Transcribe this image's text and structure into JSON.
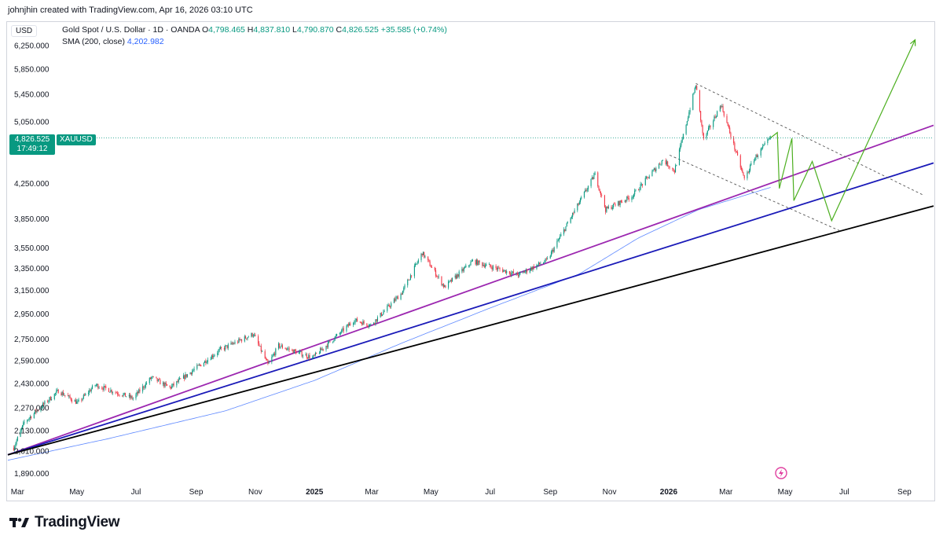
{
  "header": {
    "credit": "johnjhin created with TradingView.com, Apr 16, 2026 03:10 UTC"
  },
  "legend": {
    "symbol": "Gold Spot / U.S. Dollar · 1D · OANDA",
    "o_key": "O",
    "o_val": "4,798.465",
    "h_key": "H",
    "h_val": "4,837.810",
    "l_key": "L",
    "l_val": "4,790.870",
    "c_key": "C",
    "c_val": "4,826.525",
    "change": "+35.585 (+0.74%)",
    "sma_label": "SMA (200, close)",
    "sma_val": "4,202.982"
  },
  "price_axis": {
    "currency": "USD",
    "ticks": [
      "6,250.000",
      "5,850.000",
      "5,450.000",
      "5,050.000",
      "4,250.000",
      "3,850.000",
      "3,550.000",
      "3,350.000",
      "3,150.000",
      "2,950.000",
      "2,750.000",
      "2,590.000",
      "2,430.000",
      "2,270.000",
      "2,130.000",
      "2,010.000",
      "1,890.000"
    ],
    "last_price": "4,826.525",
    "countdown": "17:49:12",
    "symbol_tag": "XAUUSD"
  },
  "time_axis": {
    "labels": [
      "Mar",
      "May",
      "Jul",
      "Sep",
      "Nov",
      "2025",
      "Mar",
      "May",
      "Jul",
      "Sep",
      "Nov",
      "2026",
      "Mar",
      "May",
      "Jul",
      "Sep"
    ]
  },
  "footer": {
    "brand": "TradingView"
  },
  "colors": {
    "up": "#089981",
    "down": "#f23645",
    "sma": "#2962ff",
    "purple_line": "#9c27b0",
    "blue_line": "#1a1ab8",
    "black_line": "#000000",
    "projection": "#4caf1f",
    "accent": "#089981"
  },
  "chart_data": {
    "type": "candlestick",
    "symbol": "XAUUSD",
    "timeframe": "1D",
    "scale": "log",
    "ylim": [
      1850,
      6500
    ],
    "xlim": [
      "2024-02-20",
      "2026-10-01"
    ],
    "last_close": 4826.525,
    "price_path": [
      [
        "2024-02-26",
        2030
      ],
      [
        "2024-03-08",
        2180
      ],
      [
        "2024-04-12",
        2380
      ],
      [
        "2024-05-02",
        2300
      ],
      [
        "2024-05-20",
        2420
      ],
      [
        "2024-06-28",
        2330
      ],
      [
        "2024-07-17",
        2470
      ],
      [
        "2024-08-05",
        2400
      ],
      [
        "2024-09-26",
        2670
      ],
      [
        "2024-10-30",
        2790
      ],
      [
        "2024-11-14",
        2560
      ],
      [
        "2024-11-25",
        2700
      ],
      [
        "2024-12-30",
        2610
      ],
      [
        "2025-02-11",
        2900
      ],
      [
        "2025-02-28",
        2860
      ],
      [
        "2025-04-01",
        3130
      ],
      [
        "2025-04-22",
        3500
      ],
      [
        "2025-05-15",
        3180
      ],
      [
        "2025-06-13",
        3420
      ],
      [
        "2025-07-30",
        3290
      ],
      [
        "2025-08-29",
        3430
      ],
      [
        "2025-10-17",
        4360
      ],
      [
        "2025-10-28",
        3950
      ],
      [
        "2025-11-24",
        4100
      ],
      [
        "2025-12-26",
        4540
      ],
      [
        "2026-01-07",
        4400
      ],
      [
        "2026-01-29",
        5600
      ],
      [
        "2026-02-06",
        4800
      ],
      [
        "2026-02-24",
        5300
      ],
      [
        "2026-03-20",
        4300
      ],
      [
        "2026-03-30",
        4550
      ],
      [
        "2026-04-16",
        4826.525
      ]
    ],
    "sma200": [
      [
        "2024-02-20",
        1960
      ],
      [
        "2024-06-01",
        2080
      ],
      [
        "2024-10-01",
        2250
      ],
      [
        "2025-01-01",
        2450
      ],
      [
        "2025-04-01",
        2720
      ],
      [
        "2025-07-01",
        3000
      ],
      [
        "2025-10-01",
        3300
      ],
      [
        "2025-12-01",
        3650
      ],
      [
        "2026-02-01",
        3950
      ],
      [
        "2026-04-16",
        4202.982
      ]
    ],
    "trendlines": [
      {
        "color": "#9c27b0",
        "from": [
          "2024-02-20",
          1990
        ],
        "to": [
          "2026-10-01",
          5000
        ]
      },
      {
        "color": "#1a1ab8",
        "from": [
          "2024-02-20",
          1990
        ],
        "to": [
          "2026-10-01",
          4500
        ]
      },
      {
        "color": "#000000",
        "from": [
          "2024-02-20",
          1990
        ],
        "to": [
          "2026-10-01",
          3990
        ]
      }
    ],
    "channel": [
      {
        "style": "dashed",
        "from": [
          "2026-01-29",
          5620
        ],
        "to": [
          "2026-09-21",
          4110
        ]
      },
      {
        "style": "dashed",
        "from": [
          "2026-01-02",
          4600
        ],
        "to": [
          "2026-06-27",
          3720
        ]
      }
    ],
    "projection": [
      [
        "2026-04-16",
        4826.525
      ],
      [
        "2026-04-23",
        4900
      ],
      [
        "2026-04-25",
        4190
      ],
      [
        "2026-05-08",
        4820
      ],
      [
        "2026-05-10",
        4050
      ],
      [
        "2026-05-29",
        4520
      ],
      [
        "2026-06-18",
        3830
      ],
      [
        "2026-09-12",
        6350
      ]
    ]
  }
}
